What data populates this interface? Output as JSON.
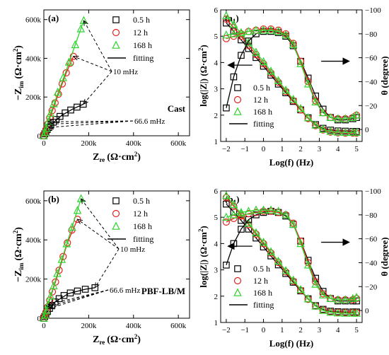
{
  "chart_data": [
    {
      "panel": "a",
      "type": "scatter",
      "tag": "(a)",
      "condition": "Cast",
      "xlabel_main": "Z",
      "xlabel_sub": "re",
      "xlabel_unit": "(Ω·cm",
      "ylabel_main": "−Z",
      "ylabel_sub": "im",
      "ylabel_unit": "(Ω·cm",
      "xlim": [
        0,
        650000
      ],
      "ylim": [
        0,
        650000
      ],
      "xticks": [
        0,
        200000,
        400000,
        600000
      ],
      "xticklabels": [
        "0",
        "200k",
        "400k",
        "600k"
      ],
      "yticks": [
        0,
        200000,
        400000,
        600000
      ],
      "yticklabels": [
        "0",
        "200k",
        "400k",
        "600k"
      ],
      "legend": [
        "0.5 h",
        "12 h",
        "168 h",
        "fitting"
      ],
      "annotations": [
        "10 mHz",
        "66.6 mHz"
      ],
      "series": [
        {
          "name": "0.5 h",
          "marker": "square",
          "color": "#000000",
          "points": [
            [
              0,
              0
            ],
            [
              4000,
              10000
            ],
            [
              9000,
              22000
            ],
            [
              15000,
              32000
            ],
            [
              22000,
              43000
            ],
            [
              31000,
              56000
            ],
            [
              42000,
              70000
            ],
            [
              55000,
              84000
            ],
            [
              72000,
              100000
            ],
            [
              95000,
              118000
            ],
            [
              120000,
              133000
            ],
            [
              148000,
              148000
            ],
            [
              176000,
              163000
            ]
          ],
          "fit": [
            [
              0,
              0
            ],
            [
              15000,
              32000
            ],
            [
              40000,
              66000
            ],
            [
              80000,
              106000
            ],
            [
              130000,
              139000
            ],
            [
              176000,
              163000
            ]
          ]
        },
        {
          "name": "12 h",
          "marker": "circle",
          "color": "#e8211b",
          "points": [
            [
              0,
              0
            ],
            [
              5000,
              14000
            ],
            [
              10000,
              32000
            ],
            [
              17000,
              60000
            ],
            [
              26000,
              93000
            ],
            [
              37000,
              130000
            ],
            [
              50000,
              170000
            ],
            [
              65000,
              215000
            ],
            [
              82000,
              268000
            ],
            [
              100000,
              325000
            ],
            [
              118000,
              375000
            ],
            [
              132000,
              410000
            ]
          ],
          "fit": [
            [
              0,
              0
            ],
            [
              20000,
              70000
            ],
            [
              60000,
              200000
            ],
            [
              100000,
              325000
            ],
            [
              132000,
              410000
            ]
          ]
        },
        {
          "name": "168 h",
          "marker": "triangle",
          "color": "#2fd42f",
          "points": [
            [
              0,
              0
            ],
            [
              5000,
              16000
            ],
            [
              11000,
              38000
            ],
            [
              19000,
              72000
            ],
            [
              30000,
              115000
            ],
            [
              44000,
              165000
            ],
            [
              62000,
              225000
            ],
            [
              86000,
              300000
            ],
            [
              112000,
              380000
            ],
            [
              140000,
              470000
            ],
            [
              165000,
              552000
            ],
            [
              178000,
              595000
            ]
          ],
          "fit": [
            [
              0,
              0
            ],
            [
              30000,
              115000
            ],
            [
              90000,
              305000
            ],
            [
              178000,
              595000
            ]
          ]
        }
      ]
    },
    {
      "panel": "a1",
      "type": "line",
      "tag": "(a",
      "tag_sub": "1",
      "xlabel": "Log(f) (Hz)",
      "ylabel_left": "log(|Z|) (Ω·cm",
      "ylabel_right": "θ (degree)",
      "xlim": [
        -2.3,
        5.3
      ],
      "ylim_left": [
        1,
        6
      ],
      "ylim_right": [
        10,
        -100
      ],
      "xticks": [
        -2,
        -1,
        0,
        1,
        2,
        3,
        4,
        5
      ],
      "xticklabels": [
        "−2",
        "−1",
        "0",
        "1",
        "2",
        "3",
        "4",
        "5"
      ],
      "yticks_left": [
        1,
        2,
        3,
        4,
        5,
        6
      ],
      "yticklabels_left": [
        "1",
        "2",
        "3",
        "4",
        "5",
        "6"
      ],
      "yticks_right": [
        0,
        -20,
        -40,
        -60,
        -80,
        -100
      ],
      "yticklabels_right": [
        "0",
        "−20",
        "−40",
        "−60",
        "−80",
        "−100"
      ],
      "legend": [
        "0.5 h",
        "12 h",
        "168 h",
        "fitting"
      ],
      "x": [
        -2,
        -1.6,
        -1.2,
        -0.8,
        -0.4,
        0,
        0.4,
        0.8,
        1.2,
        1.6,
        2,
        2.4,
        2.8,
        3.2,
        3.6,
        4,
        4.4,
        4.8,
        5
      ],
      "series_modulus": [
        {
          "name": "0.5 h",
          "color": "#000000",
          "values": [
            5.5,
            5.19,
            4.86,
            4.53,
            4.19,
            3.86,
            3.52,
            3.18,
            2.85,
            2.52,
            2.2,
            1.9,
            1.64,
            1.5,
            1.43,
            1.4,
            1.39,
            1.38,
            1.38
          ]
        },
        {
          "name": "12 h",
          "color": "#e8211b",
          "values": [
            5.65,
            5.33,
            5.0,
            4.65,
            4.3,
            3.95,
            3.6,
            3.25,
            2.9,
            2.55,
            2.2,
            1.87,
            1.6,
            1.44,
            1.36,
            1.33,
            1.32,
            1.32,
            1.32
          ]
        },
        {
          "name": "168 h",
          "color": "#2fd42f",
          "values": [
            5.78,
            5.45,
            5.1,
            4.75,
            4.39,
            4.03,
            3.67,
            3.31,
            2.95,
            2.6,
            2.25,
            1.9,
            1.62,
            1.46,
            1.38,
            1.35,
            1.34,
            1.34,
            1.34
          ]
        }
      ],
      "series_phase": [
        {
          "name": "0.5 h",
          "color": "#000000",
          "values": [
            -18,
            -44,
            -62,
            -74,
            -80,
            -82,
            -82,
            -81,
            -78,
            -70,
            -57,
            -43,
            -28,
            -17,
            -10,
            -8,
            -8,
            -9,
            -10
          ]
        },
        {
          "name": "12 h",
          "color": "#e8211b",
          "values": [
            -76,
            -78,
            -80,
            -82,
            -83,
            -84,
            -84,
            -83,
            -80,
            -72,
            -57,
            -40,
            -24,
            -14,
            -10,
            -9,
            -9,
            -10,
            -12
          ]
        },
        {
          "name": "168 h",
          "color": "#2fd42f",
          "values": [
            -79,
            -80,
            -81,
            -82,
            -83,
            -83,
            -83,
            -82,
            -79,
            -71,
            -55,
            -38,
            -23,
            -14,
            -10,
            -9,
            -9,
            -10,
            -12
          ]
        }
      ]
    },
    {
      "panel": "b",
      "type": "scatter",
      "tag": "(b)",
      "condition": "PBF-LB/M",
      "xlabel_main": "Z",
      "xlabel_sub": "re",
      "xlabel_unit": "(Ω·cm",
      "ylabel_main": "−Z",
      "ylabel_sub": "im",
      "ylabel_unit": "(Ω·cm",
      "xlim": [
        0,
        650000
      ],
      "ylim": [
        0,
        650000
      ],
      "xticks": [
        0,
        200000,
        400000,
        600000
      ],
      "xticklabels": [
        "0",
        "200k",
        "400k",
        "600k"
      ],
      "yticks": [
        0,
        200000,
        400000,
        600000
      ],
      "yticklabels": [
        "0",
        "200k",
        "400k",
        "600k"
      ],
      "legend": [
        "0.5 h",
        "12 h",
        "168 h",
        "fitting"
      ],
      "annotations": [
        "10 mHz",
        "66.6 mHz"
      ],
      "series": [
        {
          "name": "0.5 h",
          "marker": "square",
          "color": "#000000",
          "points": [
            [
              0,
              0
            ],
            [
              4000,
              9000
            ],
            [
              9000,
              21000
            ],
            [
              16000,
              34000
            ],
            [
              25000,
              50000
            ],
            [
              36000,
              66000
            ],
            [
              50000,
              83000
            ],
            [
              68000,
              100000
            ],
            [
              90000,
              116000
            ],
            [
              118000,
              129000
            ],
            [
              150000,
              139000
            ],
            [
              185000,
              148000
            ],
            [
              228000,
              156000
            ]
          ],
          "fit": [
            [
              0,
              0
            ],
            [
              16000,
              34000
            ],
            [
              50000,
              83000
            ],
            [
              110000,
              126000
            ],
            [
              185000,
              148000
            ],
            [
              228000,
              156000
            ]
          ]
        },
        {
          "name": "12 h",
          "color": "#e8211b",
          "marker": "circle",
          "points": [
            [
              0,
              0
            ],
            [
              5000,
              14000
            ],
            [
              10000,
              31000
            ],
            [
              17000,
              58000
            ],
            [
              26000,
              92000
            ],
            [
              38000,
              135000
            ],
            [
              52000,
              185000
            ],
            [
              68000,
              245000
            ],
            [
              86000,
              315000
            ],
            [
              105000,
              385000
            ],
            [
              125000,
              450000
            ],
            [
              150000,
              505000
            ]
          ],
          "fit": [
            [
              0,
              0
            ],
            [
              26000,
              92000
            ],
            [
              68000,
              245000
            ],
            [
              105000,
              385000
            ],
            [
              150000,
              505000
            ]
          ]
        },
        {
          "name": "168 h",
          "color": "#2fd42f",
          "marker": "triangle",
          "points": [
            [
              0,
              0
            ],
            [
              5000,
              16000
            ],
            [
              11000,
              38000
            ],
            [
              19000,
              70000
            ],
            [
              30000,
              113000
            ],
            [
              44000,
              165000
            ],
            [
              60000,
              228000
            ],
            [
              80000,
              300000
            ],
            [
              102000,
              380000
            ],
            [
              126000,
              465000
            ],
            [
              150000,
              550000
            ],
            [
              166000,
              610000
            ]
          ],
          "fit": [
            [
              0,
              0
            ],
            [
              30000,
              113000
            ],
            [
              80000,
              300000
            ],
            [
              166000,
              610000
            ]
          ]
        }
      ]
    },
    {
      "panel": "b1",
      "type": "line",
      "tag": "(b",
      "tag_sub": "1",
      "xlabel": "Log(f) (Hz)",
      "ylabel_left": "log(|Z|) (Ω·cm",
      "ylabel_right": "θ (degree)",
      "xlim": [
        -2.3,
        5.3
      ],
      "ylim_left": [
        1,
        6
      ],
      "ylim_right": [
        10,
        -100
      ],
      "xticks": [
        -2,
        -1,
        0,
        1,
        2,
        3,
        4,
        5
      ],
      "xticklabels": [
        "−2",
        "−1",
        "0",
        "1",
        "2",
        "3",
        "4",
        "5"
      ],
      "yticks_left": [
        1,
        2,
        3,
        4,
        5,
        6
      ],
      "yticklabels_left": [
        "1",
        "2",
        "3",
        "4",
        "5",
        "6"
      ],
      "yticks_right": [
        0,
        -20,
        -40,
        -60,
        -80,
        -100
      ],
      "yticklabels_right": [
        "0",
        "−20",
        "−40",
        "−60",
        "−80",
        "−100"
      ],
      "legend": [
        "0.5 h",
        "12 h",
        "168 h",
        "fitting"
      ],
      "x": [
        -2,
        -1.6,
        -1.2,
        -0.8,
        -0.4,
        0,
        0.4,
        0.8,
        1.2,
        1.6,
        2,
        2.4,
        2.8,
        3.2,
        3.6,
        4,
        4.4,
        4.8,
        5
      ],
      "series_modulus": [
        {
          "name": "0.5 h",
          "color": "#000000",
          "values": [
            5.5,
            5.2,
            4.88,
            4.55,
            4.21,
            3.87,
            3.53,
            3.19,
            2.86,
            2.53,
            2.2,
            1.9,
            1.64,
            1.5,
            1.43,
            1.41,
            1.4,
            1.4,
            1.4
          ]
        },
        {
          "name": "12 h",
          "color": "#e8211b",
          "values": [
            5.75,
            5.42,
            5.07,
            4.72,
            4.36,
            4.0,
            3.64,
            3.28,
            2.92,
            2.57,
            2.22,
            1.88,
            1.62,
            1.47,
            1.4,
            1.38,
            1.37,
            1.37,
            1.37
          ]
        },
        {
          "name": "168 h",
          "color": "#2fd42f",
          "values": [
            5.82,
            5.48,
            5.13,
            4.77,
            4.41,
            4.05,
            3.69,
            3.33,
            2.97,
            2.61,
            2.25,
            1.9,
            1.62,
            1.46,
            1.39,
            1.36,
            1.35,
            1.35,
            1.35
          ]
        }
      ],
      "series_phase": [
        {
          "name": "0.5 h",
          "color": "#000000",
          "values": [
            -38,
            -56,
            -68,
            -76,
            -80,
            -82,
            -83,
            -82,
            -79,
            -72,
            -58,
            -42,
            -27,
            -16,
            -10,
            -8,
            -8,
            -8,
            -8
          ]
        },
        {
          "name": "12 h",
          "color": "#e8211b",
          "values": [
            -74,
            -77,
            -79,
            -81,
            -82,
            -83,
            -83,
            -82,
            -80,
            -73,
            -58,
            -40,
            -24,
            -14,
            -10,
            -9,
            -9,
            -9,
            -10
          ]
        },
        {
          "name": "168 h",
          "color": "#2fd42f",
          "values": [
            -78,
            -80,
            -82,
            -83,
            -84,
            -84,
            -84,
            -83,
            -80,
            -72,
            -56,
            -38,
            -22,
            -13,
            -10,
            -9,
            -9,
            -10,
            -11
          ]
        }
      ]
    }
  ]
}
